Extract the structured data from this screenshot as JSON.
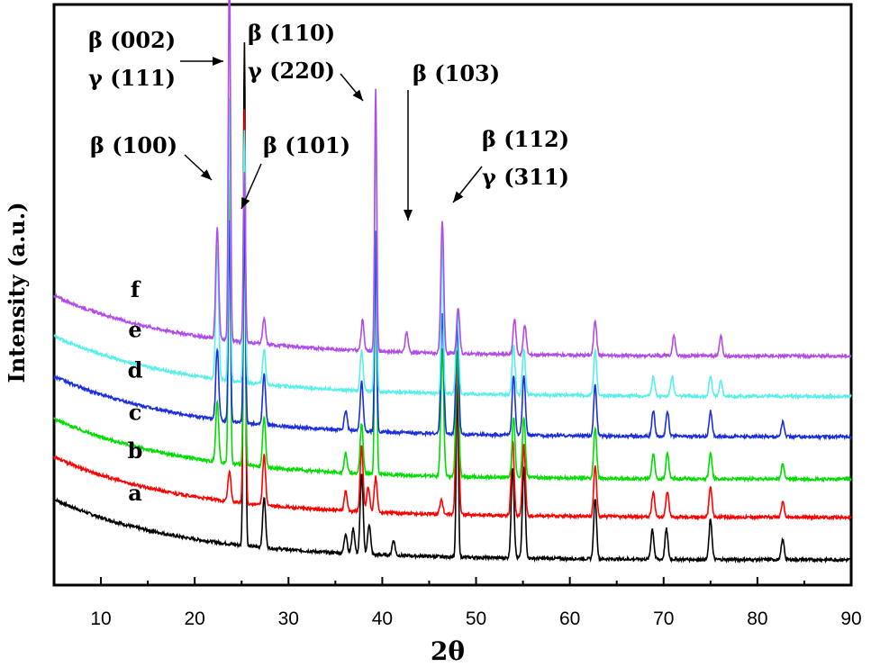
{
  "chart_data": {
    "type": "line",
    "xlabel": "2θ",
    "ylabel": "Intensity (a.u.)",
    "xlim": [
      5,
      90
    ],
    "xticks": [
      "10",
      "20",
      "30",
      "40",
      "50",
      "60",
      "70",
      "80",
      "90"
    ],
    "grid": false,
    "series": [
      {
        "name": "a",
        "color": "#000000",
        "offset": 0,
        "baseline": {
          "start": 12,
          "end": 0,
          "decay": 14
        },
        "peaks": [
          [
            25.3,
            100
          ],
          [
            27.4,
            10
          ],
          [
            36.1,
            4
          ],
          [
            36.9,
            5
          ],
          [
            37.8,
            16
          ],
          [
            38.6,
            6
          ],
          [
            41.2,
            3
          ],
          [
            48.0,
            36
          ],
          [
            53.9,
            18
          ],
          [
            55.1,
            18
          ],
          [
            62.7,
            12
          ],
          [
            68.8,
            6
          ],
          [
            70.3,
            6
          ],
          [
            75.0,
            8
          ],
          [
            82.7,
            4
          ]
        ]
      },
      {
        "name": "b",
        "color": "#ff0000",
        "offset": 2,
        "baseline": {
          "start": 12,
          "end": 0,
          "decay": 14
        },
        "peaks": [
          [
            23.7,
            6
          ],
          [
            25.3,
            78
          ],
          [
            27.4,
            10
          ],
          [
            36.1,
            4
          ],
          [
            37.8,
            13
          ],
          [
            38.5,
            5
          ],
          [
            39.3,
            7
          ],
          [
            46.3,
            3
          ],
          [
            48.0,
            30
          ],
          [
            53.9,
            15
          ],
          [
            55.1,
            14
          ],
          [
            62.7,
            10
          ],
          [
            68.9,
            5
          ],
          [
            70.4,
            5
          ],
          [
            75.0,
            6
          ],
          [
            82.7,
            3
          ]
        ]
      },
      {
        "name": "c",
        "color": "#00dd00",
        "offset": 3.8,
        "baseline": {
          "start": 12,
          "end": 0,
          "decay": 14
        },
        "peaks": [
          [
            22.4,
            12
          ],
          [
            23.7,
            56
          ],
          [
            25.3,
            48
          ],
          [
            27.4,
            10
          ],
          [
            36.1,
            4
          ],
          [
            37.8,
            10
          ],
          [
            39.3,
            48
          ],
          [
            46.4,
            25
          ],
          [
            48.0,
            25
          ],
          [
            54.0,
            12
          ],
          [
            55.1,
            12
          ],
          [
            62.7,
            10
          ],
          [
            68.9,
            5
          ],
          [
            70.4,
            5
          ],
          [
            75.0,
            5
          ],
          [
            82.7,
            3
          ]
        ]
      },
      {
        "name": "d",
        "color": "#1a2ee0",
        "offset": 5.8,
        "baseline": {
          "start": 12,
          "end": 0,
          "decay": 14
        },
        "peaks": [
          [
            22.4,
            14
          ],
          [
            23.7,
            40
          ],
          [
            25.3,
            42
          ],
          [
            27.4,
            10
          ],
          [
            36.1,
            4
          ],
          [
            37.8,
            10
          ],
          [
            39.3,
            40
          ],
          [
            46.4,
            24
          ],
          [
            48.0,
            22
          ],
          [
            54.0,
            12
          ],
          [
            55.1,
            12
          ],
          [
            62.7,
            10
          ],
          [
            68.9,
            5
          ],
          [
            70.4,
            5
          ],
          [
            75.0,
            5
          ],
          [
            82.7,
            3
          ]
        ]
      },
      {
        "name": "e",
        "color": "#5aefe8",
        "offset": 7.7,
        "baseline": {
          "start": 12,
          "end": 0,
          "decay": 14
        },
        "peaks": [
          [
            22.4,
            26
          ],
          [
            23.7,
            56
          ],
          [
            25.3,
            50
          ],
          [
            27.4,
            7
          ],
          [
            37.8,
            8
          ],
          [
            39.3,
            56
          ],
          [
            46.4,
            32
          ],
          [
            48.0,
            16
          ],
          [
            54.0,
            10
          ],
          [
            55.1,
            9
          ],
          [
            62.7,
            9
          ],
          [
            68.9,
            4
          ],
          [
            70.9,
            4
          ],
          [
            75.0,
            4
          ],
          [
            76.1,
            3
          ]
        ]
      },
      {
        "name": "f",
        "color": "#b04de8",
        "offset": 9.6,
        "baseline": {
          "start": 12,
          "end": 0,
          "decay": 14
        },
        "peaks": [
          [
            22.4,
            22
          ],
          [
            23.7,
            78
          ],
          [
            25.3,
            34
          ],
          [
            27.4,
            5
          ],
          [
            37.9,
            6
          ],
          [
            39.3,
            52
          ],
          [
            42.6,
            4
          ],
          [
            46.4,
            26
          ],
          [
            48.1,
            9
          ],
          [
            54.1,
            7
          ],
          [
            55.2,
            6
          ],
          [
            62.7,
            7
          ],
          [
            71.1,
            4
          ],
          [
            76.1,
            4
          ]
        ]
      }
    ],
    "annotations": [
      {
        "lines": [
          "β (002)",
          "γ (111)"
        ],
        "target_x": 23.6,
        "target_y": 84.0
      },
      {
        "lines": [
          "β (110)",
          "γ (220)"
        ],
        "target_x": 39.1,
        "target_y": 75.5
      },
      {
        "lines": [
          "β (103)"
        ],
        "target_x": 42.6,
        "target_y": 52.0
      },
      {
        "lines": [
          "β (100)"
        ],
        "target_x": 22.2,
        "target_y": 58.0
      },
      {
        "lines": [
          "β (101)"
        ],
        "target_x": 25.5,
        "target_y": 53.5
      },
      {
        "lines": [
          "β (112)",
          "γ (311)"
        ],
        "target_x": 47.2,
        "target_y": 57.0
      }
    ]
  }
}
